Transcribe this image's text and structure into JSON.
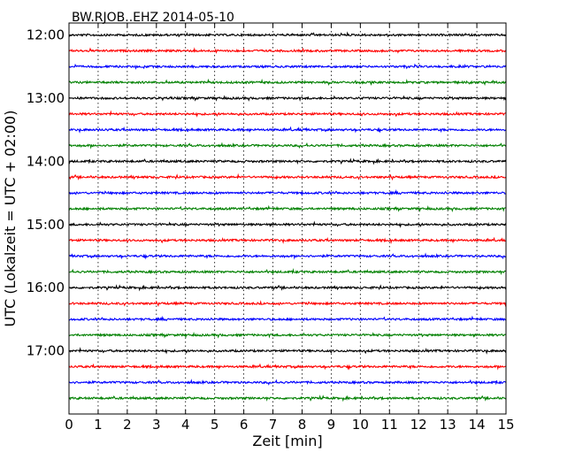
{
  "chart_data": {
    "type": "line",
    "title": "BW.RJOB..EHZ 2014-05-10",
    "xlabel": "Zeit  [min]",
    "ylabel": "UTC (Lokalzeit = UTC + 02:00)",
    "xlim": [
      0,
      15
    ],
    "x_ticks": [
      "0",
      "1",
      "2",
      "3",
      "4",
      "5",
      "6",
      "7",
      "8",
      "9",
      "10",
      "11",
      "12",
      "13",
      "14",
      "15"
    ],
    "y_ticks": [
      "12:00",
      "13:00",
      "14:00",
      "15:00",
      "16:00",
      "17:00"
    ],
    "ylim_hours": [
      11.81,
      18.0
    ],
    "vertical_grid": "dotted",
    "trace_interval_min": 15,
    "trace_colors": [
      "#000000",
      "#ff0000",
      "#0000ff",
      "#008000"
    ],
    "traces": [
      {
        "start": "12:00",
        "color": "#000000"
      },
      {
        "start": "12:15",
        "color": "#ff0000"
      },
      {
        "start": "12:30",
        "color": "#0000ff"
      },
      {
        "start": "12:45",
        "color": "#008000"
      },
      {
        "start": "13:00",
        "color": "#000000"
      },
      {
        "start": "13:15",
        "color": "#ff0000"
      },
      {
        "start": "13:30",
        "color": "#0000ff"
      },
      {
        "start": "13:45",
        "color": "#008000"
      },
      {
        "start": "14:00",
        "color": "#000000"
      },
      {
        "start": "14:15",
        "color": "#ff0000"
      },
      {
        "start": "14:30",
        "color": "#0000ff"
      },
      {
        "start": "14:45",
        "color": "#008000"
      },
      {
        "start": "15:00",
        "color": "#000000"
      },
      {
        "start": "15:15",
        "color": "#ff0000"
      },
      {
        "start": "15:30",
        "color": "#0000ff"
      },
      {
        "start": "15:45",
        "color": "#008000"
      },
      {
        "start": "16:00",
        "color": "#000000"
      },
      {
        "start": "16:15",
        "color": "#ff0000"
      },
      {
        "start": "16:30",
        "color": "#0000ff"
      },
      {
        "start": "16:45",
        "color": "#008000"
      },
      {
        "start": "17:00",
        "color": "#000000"
      },
      {
        "start": "17:15",
        "color": "#ff0000"
      },
      {
        "start": "17:30",
        "color": "#0000ff"
      },
      {
        "start": "17:45",
        "color": "#008000"
      }
    ]
  }
}
